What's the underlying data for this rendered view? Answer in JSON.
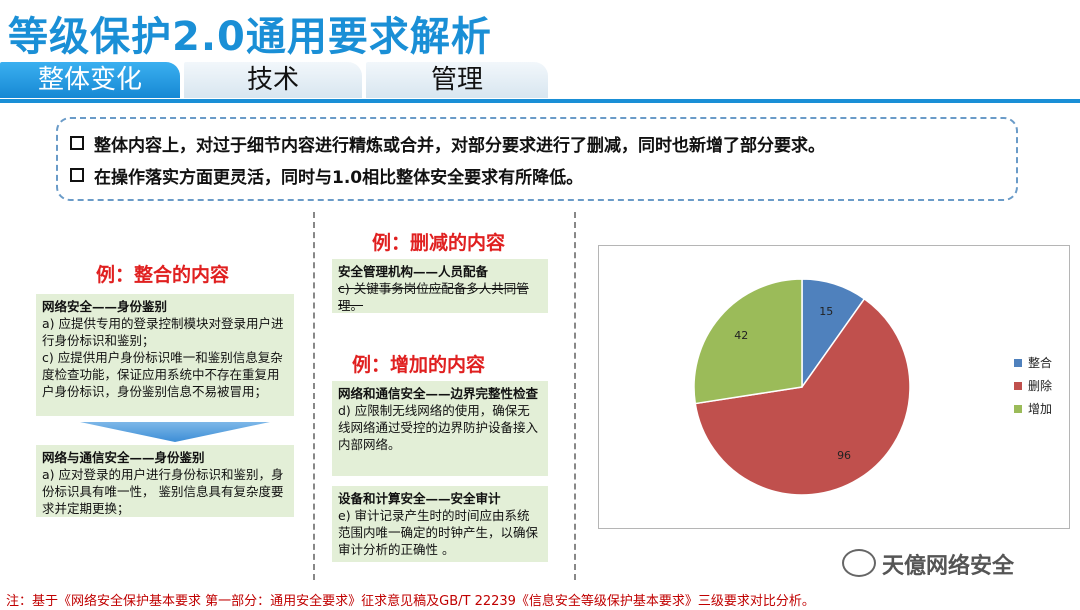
{
  "header": {
    "title": "等级保护2.0通用要求解析",
    "tabs": [
      {
        "label": "整体变化",
        "active": true
      },
      {
        "label": "技术",
        "active": false
      },
      {
        "label": "管理",
        "active": false
      }
    ]
  },
  "summary": {
    "line1": "整体内容上，对过于细节内容进行精炼或合并，对部分要求进行了删减，同时也新增了部分要求。",
    "line2": "在操作落实方面更灵活，同时与1.0相比整体安全要求有所降低。"
  },
  "merged": {
    "heading": "例：整合的内容",
    "box1_title": "网络安全——身份鉴别",
    "box1_a": "a)  应提供专用的登录控制模块对登录用户进行身份标识和鉴别；",
    "box1_c": "c)  应提供用户身份标识唯一和鉴别信息复杂度检查功能，保证应用系统中不存在重复用户身份标识，身份鉴别信息不易被冒用；",
    "box2_title": "网络与通信安全——身份鉴别",
    "box2_a": "a) 应对登录的用户进行身份标识和鉴别，身份标识具有唯一性， 鉴别信息具有复杂度要求并定期更换；"
  },
  "deleted": {
    "heading": "例：删减的内容",
    "title": "安全管理机构——人员配备",
    "item": "c)  关键事务岗位应配备多人共同管理。"
  },
  "added": {
    "heading": "例：增加的内容",
    "box1_title": "网络和通信安全——边界完整性检查",
    "box1_text": "d) 应限制无线网络的使用，确保无线网络通过受控的边界防护设备接入内部网络。",
    "box2_title": "设备和计算安全——安全审计",
    "box2_text": "e) 审计记录产生时的时间应由系统范围内唯一确定的时钟产生，以确保审计分析的正确性 。"
  },
  "chart_data": {
    "type": "pie",
    "categories": [
      "整合",
      "删除",
      "增加"
    ],
    "values": [
      15,
      96,
      42
    ],
    "colors": [
      "#4f81bd",
      "#c0504d",
      "#9bbb59"
    ],
    "legend": "right"
  },
  "watermark": "天億网络安全",
  "footnote": "注：基于《网络安全保护基本要求 第一部分：通用安全要求》征求意见稿及GB/T 22239《信息安全等级保护基本要求》三级要求对比分析。"
}
